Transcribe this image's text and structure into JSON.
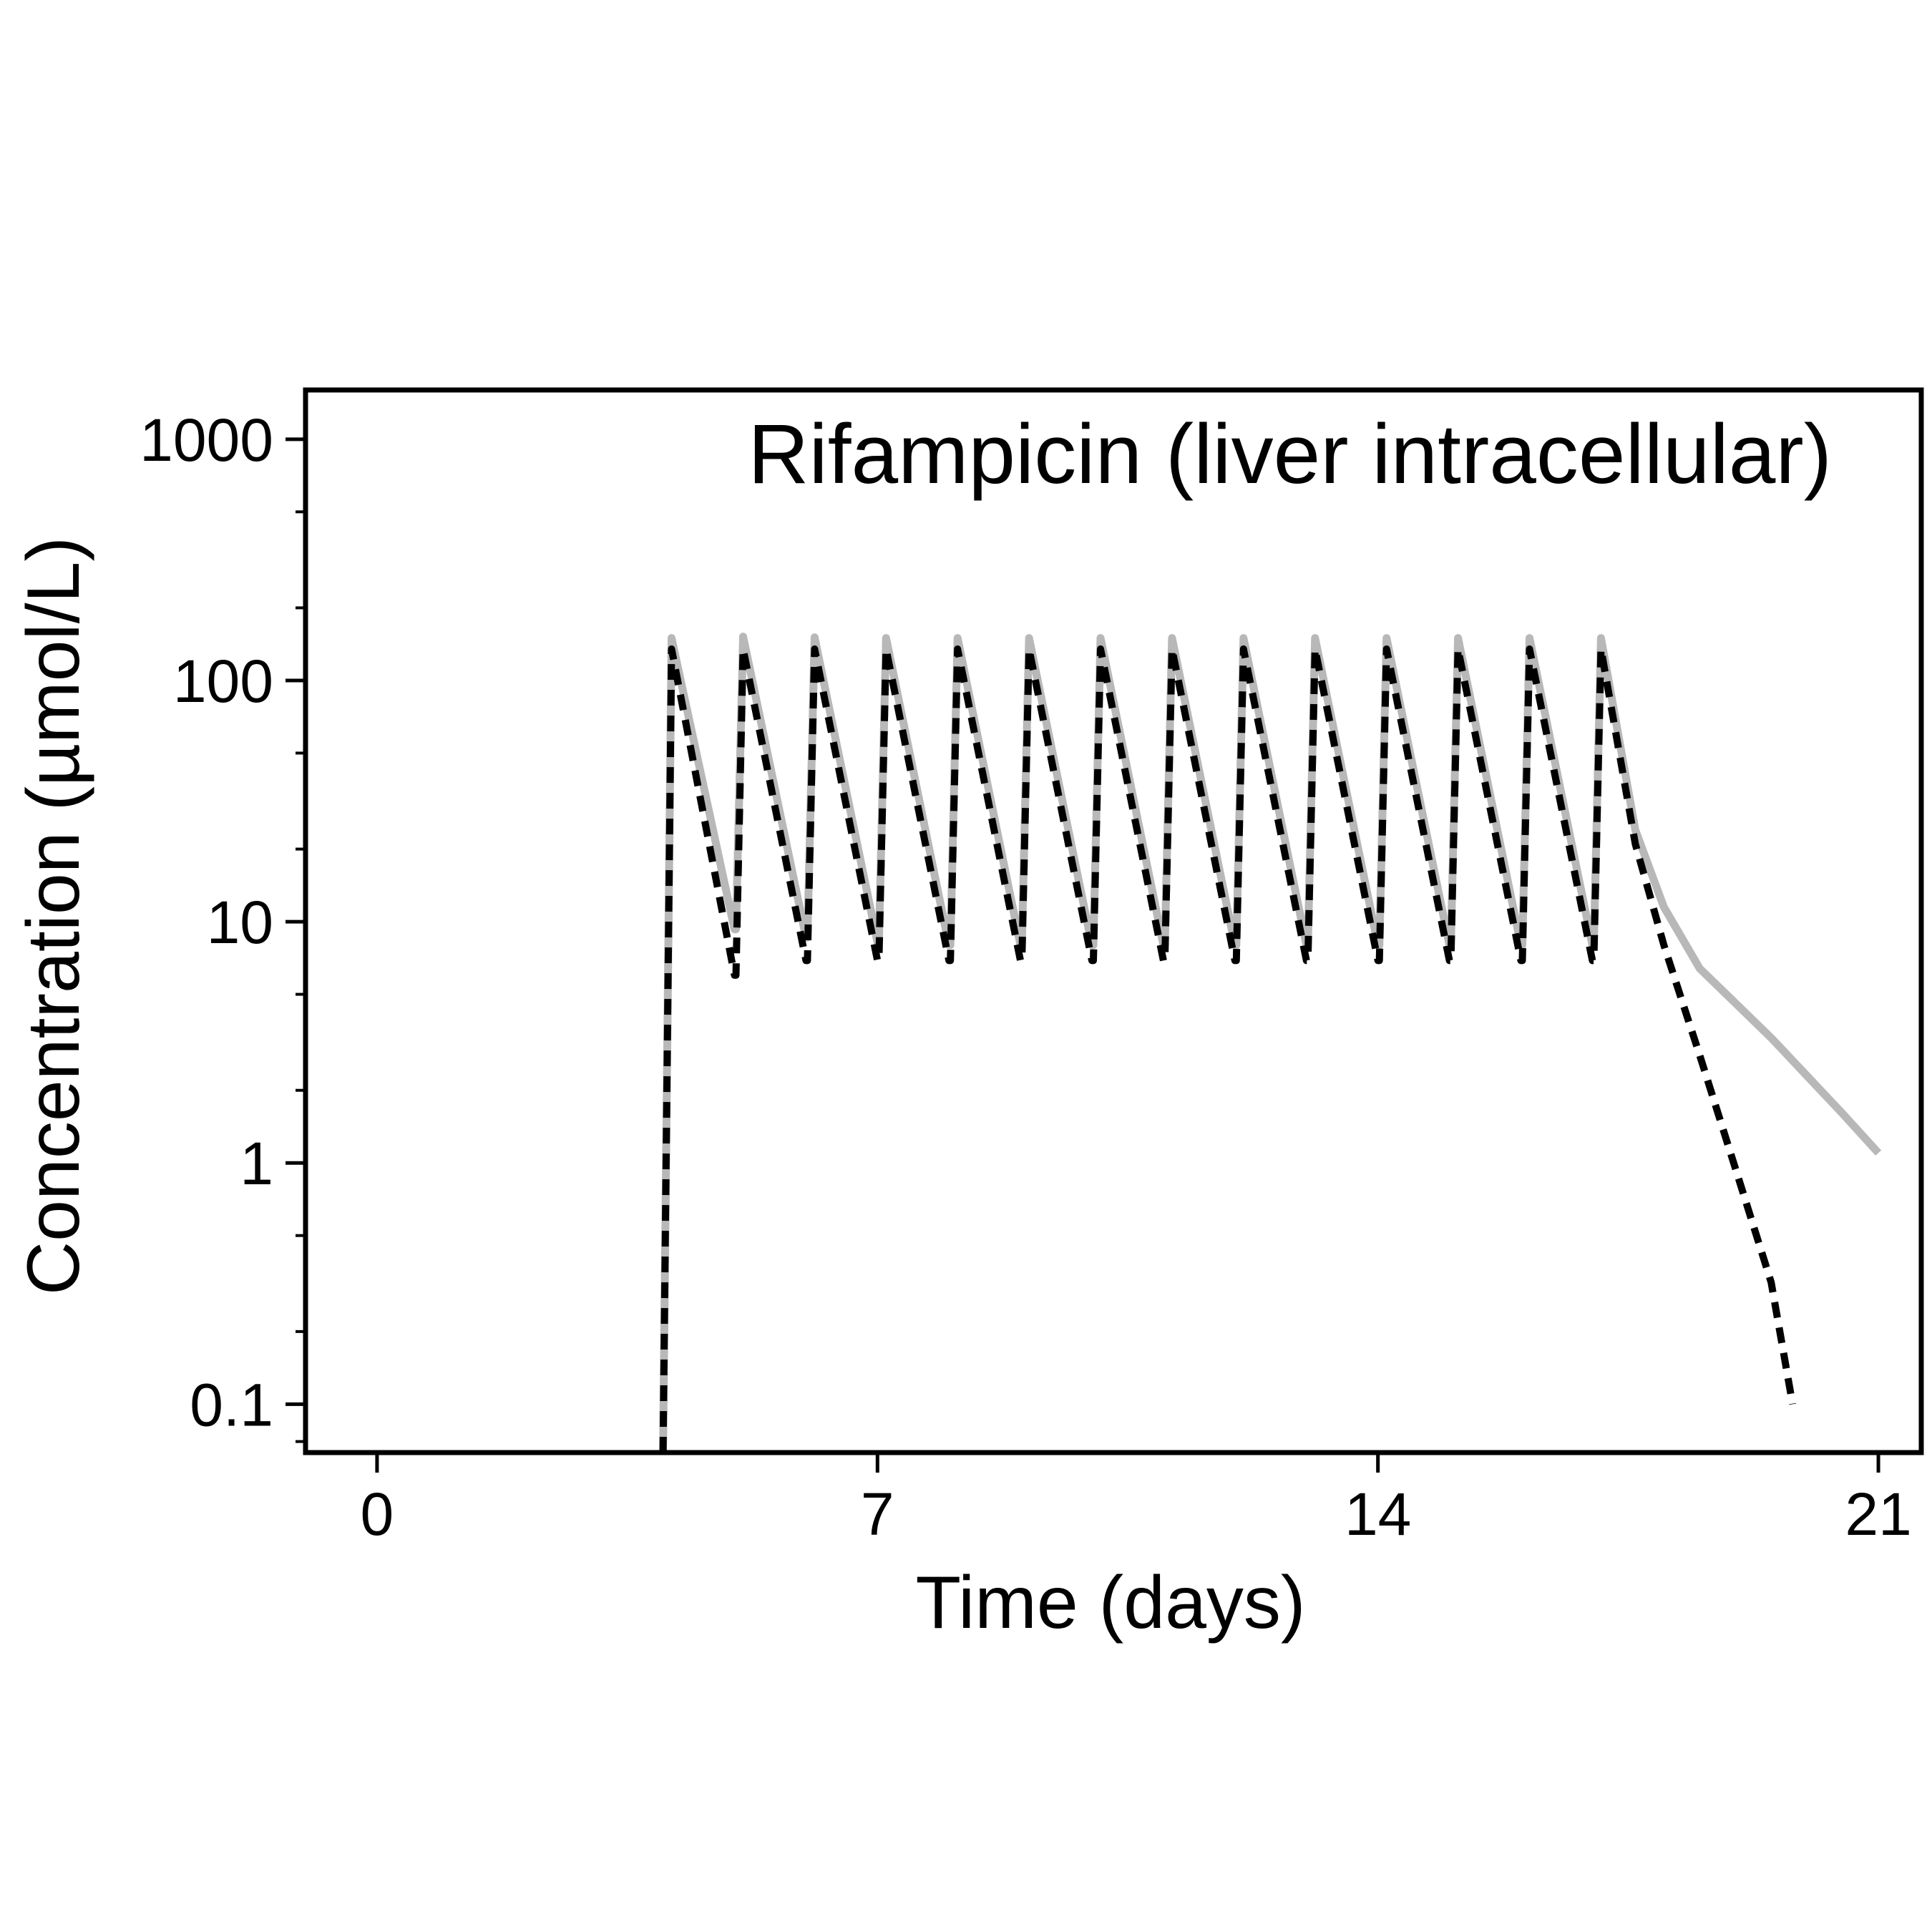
{
  "chart_data": {
    "type": "line",
    "title": "Rifampicin (liver intracellular)",
    "xlabel": "Time (days)",
    "ylabel": "Concentration (µmol/L)",
    "xlim": [
      -1,
      21.6
    ],
    "ylim": [
      0.063,
      1600
    ],
    "yscale": "log",
    "xticks": [
      0,
      7,
      14,
      21
    ],
    "xtick_labels": [
      "0",
      "7",
      "14",
      "21"
    ],
    "yticks": [
      0.1,
      1,
      10,
      100,
      1000
    ],
    "ytick_labels": [
      "0.1",
      "1",
      "10",
      "100",
      "1000"
    ],
    "grid": false,
    "legend": "none",
    "series": [
      {
        "style": "solid",
        "color": "#b8b8b8",
        "x": [
          4.0,
          4.12,
          5.0,
          5.02,
          5.12,
          6.0,
          6.02,
          6.12,
          7.0,
          7.02,
          7.12,
          8.0,
          8.02,
          8.12,
          9.0,
          9.02,
          9.12,
          10.0,
          10.02,
          10.12,
          11.0,
          11.02,
          11.12,
          12.0,
          12.02,
          12.12,
          13.0,
          13.02,
          13.12,
          14.0,
          14.02,
          14.12,
          15.0,
          15.02,
          15.12,
          16.0,
          16.02,
          16.12,
          17.0,
          17.02,
          17.12,
          17.6,
          18.0,
          18.5,
          19.0,
          19.5,
          20.0,
          20.5,
          21.0
        ],
        "y": [
          0.063,
          150,
          9.3,
          9.3,
          152,
          8.6,
          8.6,
          151,
          8.2,
          8.2,
          150,
          8.0,
          8.0,
          150,
          8.0,
          8.0,
          150,
          8.0,
          8.0,
          150,
          8.0,
          8.0,
          150,
          8.0,
          8.0,
          150,
          8.0,
          8.0,
          150,
          8.0,
          8.0,
          150,
          8.0,
          8.0,
          150,
          8.0,
          8.0,
          150,
          8.0,
          8.0,
          150,
          24,
          11.5,
          6.4,
          4.6,
          3.3,
          2.3,
          1.6,
          1.1
        ]
      },
      {
        "style": "dotted",
        "color": "#000000",
        "x": [
          4.0,
          4.12,
          5.0,
          5.02,
          5.12,
          6.0,
          6.02,
          6.12,
          7.0,
          7.02,
          7.12,
          8.0,
          8.02,
          8.12,
          9.0,
          9.02,
          9.12,
          10.0,
          10.02,
          10.12,
          11.0,
          11.02,
          11.12,
          12.0,
          12.02,
          12.12,
          13.0,
          13.02,
          13.12,
          14.0,
          14.02,
          14.12,
          15.0,
          15.02,
          15.12,
          16.0,
          16.02,
          16.12,
          17.0,
          17.02,
          17.12,
          17.6,
          18.0,
          18.5,
          19.0,
          19.5,
          19.8
        ],
        "y": [
          0.063,
          135,
          6.0,
          6.0,
          135,
          6.9,
          6.9,
          135,
          6.9,
          6.9,
          135,
          6.9,
          6.9,
          135,
          6.9,
          6.9,
          135,
          6.9,
          6.9,
          135,
          6.9,
          6.9,
          135,
          6.9,
          6.9,
          135,
          6.9,
          6.9,
          135,
          6.9,
          6.9,
          135,
          6.9,
          6.9,
          135,
          6.9,
          6.9,
          135,
          6.9,
          6.9,
          135,
          21,
          8.0,
          2.8,
          0.95,
          0.32,
          0.1
        ]
      }
    ]
  }
}
